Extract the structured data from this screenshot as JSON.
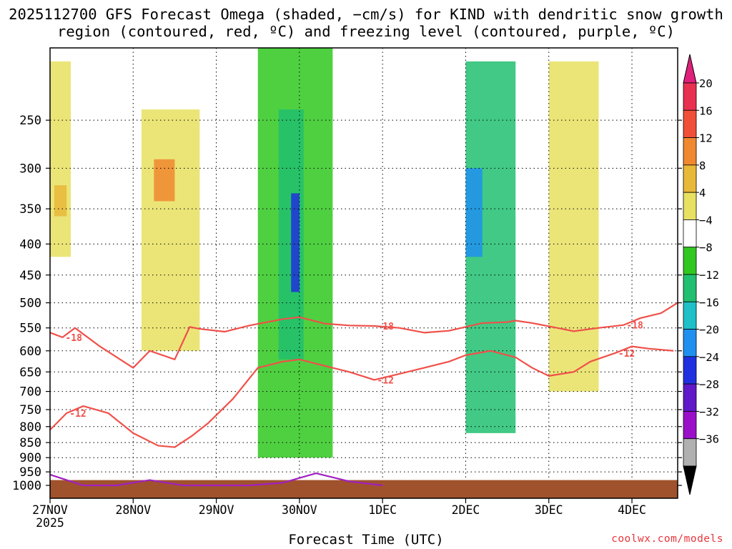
{
  "title": "2025112700 GFS Forecast Omega (shaded, −cm/s) for KIND with dendritic snow growth region (contoured, red, ºC) and freezing level (contoured, purple, ºC)",
  "colors": {
    "snow_growth_contour": "#f0504a",
    "freezing_level_contour": "#a020c0",
    "ground": "#a0522d",
    "credit": "#e8353b"
  },
  "chart_data": {
    "type": "heatmap",
    "title": "2025112700 GFS Forecast Omega (shaded, −cm/s) for KIND with dendritic snow growth region (contoured, red, ºC) and freezing level (contoured, purple, ºC)",
    "xlabel": "Forecast Time (UTC)",
    "ylabel": "",
    "y_scale": "log-pressure (hPa), inverted",
    "ylim": [
      1050,
      190
    ],
    "y_ticks": [
      "250",
      "300",
      "350",
      "400",
      "450",
      "500",
      "550",
      "600",
      "650",
      "700",
      "750",
      "800",
      "850",
      "900",
      "950",
      "1000"
    ],
    "x_ticks": [
      "27NOV\n2025",
      "28NOV",
      "29NOV",
      "30NOV",
      "1DEC",
      "2DEC",
      "3DEC",
      "4DEC"
    ],
    "x_range_days": [
      0,
      7.55
    ],
    "grid": true,
    "colorbar": {
      "levels": [
        "20",
        "16",
        "12",
        "8",
        "4",
        "−4",
        "−8",
        "−12",
        "−16",
        "−20",
        "−24",
        "−28",
        "−32",
        "−36"
      ],
      "colors": [
        "#e83050",
        "#f05038",
        "#f08830",
        "#e8b838",
        "#e8e060",
        "#ffffff",
        "#30c820",
        "#20c070",
        "#20c0c8",
        "#2090f0",
        "#2030e0",
        "#6018c8",
        "#9a10c8",
        "#b0b0b0"
      ],
      "top_arrow_color": "#e0207a",
      "bottom_arrow_color": "#000000"
    },
    "series": [
      {
        "name": "-18",
        "line": "snow growth -18ºC",
        "x": [
          0,
          0.15,
          0.3,
          0.6,
          1.0,
          1.2,
          1.5,
          1.68,
          1.8,
          2.1,
          2.4,
          2.8,
          3.0,
          3.3,
          3.6,
          3.9,
          4.2,
          4.5,
          4.8,
          5.0,
          5.2,
          5.5,
          5.6,
          5.8,
          6.1,
          6.3,
          6.6,
          6.9,
          7.1,
          7.35,
          7.55
        ],
        "y": [
          560,
          570,
          550,
          590,
          640,
          600,
          620,
          548,
          552,
          558,
          545,
          532,
          528,
          541,
          545,
          546,
          550,
          560,
          556,
          548,
          540,
          538,
          535,
          540,
          550,
          557,
          550,
          544,
          530,
          520,
          500
        ]
      },
      {
        "name": "-12",
        "line": "snow growth -12ºC",
        "x": [
          0,
          0.2,
          0.4,
          0.7,
          1.0,
          1.3,
          1.5,
          1.7,
          1.9,
          2.2,
          2.5,
          2.8,
          3.0,
          3.3,
          3.6,
          3.9,
          4.2,
          4.5,
          4.8,
          5.0,
          5.3,
          5.6,
          5.8,
          6.0,
          6.3,
          6.5,
          6.8,
          7.0,
          7.2,
          7.5
        ],
        "y": [
          810,
          760,
          740,
          760,
          820,
          860,
          865,
          830,
          790,
          720,
          640,
          625,
          620,
          635,
          650,
          670,
          655,
          640,
          625,
          610,
          600,
          615,
          640,
          660,
          650,
          625,
          605,
          590,
          595,
          600
        ]
      },
      {
        "name": "0",
        "line": "freezing level 0ºC",
        "x": [
          0,
          0.2,
          0.4,
          0.8,
          1.2,
          1.6,
          2.0,
          2.4,
          2.8,
          3.2,
          3.6,
          4.0
        ],
        "y": [
          960,
          980,
          1000,
          1000,
          980,
          1000,
          1000,
          1000,
          990,
          955,
          985,
          1000
        ]
      }
    ],
    "omega_cells": [
      {
        "x0": 0.0,
        "x1": 0.25,
        "p0": 200,
        "p1": 420,
        "level": "4",
        "color": "#e8e060"
      },
      {
        "x0": 0.05,
        "x1": 0.2,
        "p0": 320,
        "p1": 360,
        "level": "8",
        "color": "#e8b838"
      },
      {
        "x0": 1.1,
        "x1": 1.8,
        "p0": 240,
        "p1": 600,
        "level": "4",
        "color": "#e8e060"
      },
      {
        "x0": 1.25,
        "x1": 1.5,
        "p0": 290,
        "p1": 340,
        "level": "12",
        "color": "#f08830"
      },
      {
        "x0": 2.5,
        "x1": 3.4,
        "p0": 160,
        "p1": 900,
        "level": "−4",
        "color": "#30c820"
      },
      {
        "x0": 2.75,
        "x1": 3.05,
        "p0": 240,
        "p1": 620,
        "level": "−12",
        "color": "#20c070"
      },
      {
        "x0": 2.9,
        "x1": 3.0,
        "p0": 330,
        "p1": 480,
        "level": "−24",
        "color": "#2030e0"
      },
      {
        "x0": 5.0,
        "x1": 5.6,
        "p0": 200,
        "p1": 820,
        "level": "−8",
        "color": "#20c070"
      },
      {
        "x0": 5.0,
        "x1": 5.2,
        "p0": 300,
        "p1": 420,
        "level": "−20",
        "color": "#2090f0"
      },
      {
        "x0": 6.0,
        "x1": 6.6,
        "p0": 200,
        "p1": 700,
        "level": "4",
        "color": "#e8e060"
      }
    ]
  },
  "credit": "coolwx.com/models"
}
